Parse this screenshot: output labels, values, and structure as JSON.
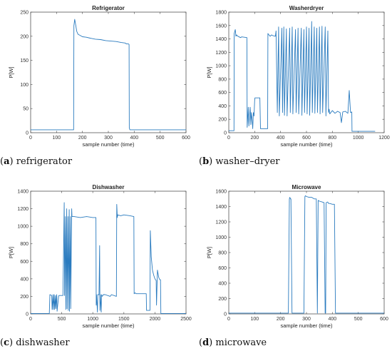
{
  "chart_data": [
    {
      "type": "line",
      "title": "Refrigerator",
      "xlabel": "sample number (time)",
      "ylabel": "P[W]",
      "xlim": [
        0,
        600
      ],
      "ylim": [
        0,
        250
      ],
      "xticks": [
        "0",
        "100",
        "200",
        "300",
        "400",
        "500",
        "600"
      ],
      "yticks": [
        "0",
        "50",
        "100",
        "150",
        "200",
        "250"
      ],
      "caption_letter": "a",
      "caption_text": "refrigerator",
      "color": "#2a7bbf",
      "series": [
        {
          "x": [
            0,
            100,
            166,
            167,
            170,
            173,
            178,
            183,
            190,
            200,
            215,
            230,
            250,
            270,
            290,
            310,
            330,
            350,
            365,
            370,
            378,
            380,
            381,
            383,
            400,
            450,
            500,
            550,
            600
          ],
          "y": [
            6,
            6,
            6,
            222,
            235,
            226,
            210,
            204,
            202,
            199,
            198,
            196,
            194,
            193,
            191,
            190,
            189,
            187,
            186,
            184,
            184,
            183,
            10,
            6,
            6,
            6,
            6,
            6,
            6
          ]
        }
      ]
    },
    {
      "type": "line",
      "title": "Washerdryer",
      "xlabel": "sample number (time)",
      "ylabel": "P[W]",
      "xlim": [
        0,
        1200
      ],
      "ylim": [
        0,
        1800
      ],
      "xticks": [
        "0",
        "200",
        "400",
        "600",
        "800",
        "1000",
        "1200"
      ],
      "yticks": [
        "0",
        "200",
        "400",
        "600",
        "800",
        "1000",
        "1200",
        "1400",
        "1600",
        "1800"
      ],
      "caption_letter": "b",
      "caption_text": "washer–dryer",
      "color": "#2a7bbf",
      "series": [
        {
          "x": [
            0,
            40,
            42,
            50,
            55,
            60,
            70,
            80,
            90,
            100,
            140,
            142,
            148,
            150,
            155,
            160,
            165,
            170,
            175,
            180,
            185,
            190,
            195,
            200,
            202,
            240,
            245,
            280,
            282,
            300,
            302,
            310,
            320,
            330,
            340,
            360,
            365,
            375,
            385,
            390,
            410,
            415,
            425,
            430,
            445,
            450,
            470,
            475,
            490,
            495,
            515,
            520,
            535,
            540,
            560,
            565,
            580,
            585,
            600,
            605,
            620,
            625,
            640,
            645,
            660,
            665,
            680,
            685,
            700,
            705,
            720,
            725,
            745,
            750,
            765,
            770,
            775,
            780,
            800,
            820,
            840,
            860,
            870,
            880,
            900,
            920,
            930,
            940,
            950,
            952,
            960,
            1000,
            1100,
            1130
          ],
          "y": [
            30,
            30,
            1480,
            1540,
            1440,
            1460,
            1440,
            1430,
            1420,
            1430,
            1420,
            80,
            300,
            380,
            100,
            250,
            380,
            120,
            300,
            200,
            60,
            300,
            250,
            480,
            520,
            520,
            60,
            60,
            60,
            60,
            1480,
            1460,
            1440,
            1460,
            1450,
            1440,
            1520,
            300,
            1580,
            250,
            1560,
            300,
            1580,
            260,
            1550,
            250,
            1560,
            300,
            1580,
            280,
            1540,
            300,
            1560,
            280,
            1560,
            260,
            1540,
            300,
            1580,
            280,
            1560,
            260,
            1660,
            300,
            1580,
            290,
            1560,
            300,
            1580,
            280,
            1590,
            300,
            1580,
            250,
            1520,
            300,
            350,
            280,
            330,
            290,
            320,
            300,
            150,
            310,
            320,
            290,
            630,
            300,
            310,
            20,
            20,
            20,
            20,
            20
          ]
        }
      ]
    },
    {
      "type": "line",
      "title": "Dishwasher",
      "xlabel": "sample number (time)",
      "ylabel": "P[W]",
      "xlim": [
        0,
        2500
      ],
      "ylim": [
        0,
        1400
      ],
      "xticks": [
        "0",
        "500",
        "1000",
        "1500",
        "2000",
        "2500"
      ],
      "yticks": [
        "0",
        "200",
        "400",
        "600",
        "800",
        "1000",
        "1200",
        "1400"
      ],
      "caption_letter": "c",
      "caption_text": "dishwasher",
      "color": "#2a7bbf",
      "series": [
        {
          "x": [
            0,
            300,
            310,
            340,
            345,
            360,
            365,
            380,
            385,
            400,
            405,
            420,
            425,
            450,
            455,
            520,
            540,
            545,
            560,
            565,
            580,
            585,
            600,
            605,
            620,
            625,
            640,
            645,
            660,
            665,
            700,
            800,
            900,
            1000,
            1050,
            1055,
            1060,
            1075,
            1080,
            1100,
            1110,
            1115,
            1120,
            1135,
            1140,
            1150,
            1160,
            1170,
            1200,
            1280,
            1300,
            1380,
            1385,
            1395,
            1400,
            1450,
            1500,
            1600,
            1660,
            1665,
            1680,
            1700,
            1860,
            1865,
            1880,
            1900,
            1920,
            1925,
            1940,
            1960,
            1980,
            2000,
            2020,
            2025,
            2040,
            2060,
            2070,
            2080,
            2090,
            2095,
            2100,
            2500
          ],
          "y": [
            5,
            5,
            220,
            210,
            50,
            220,
            50,
            220,
            50,
            210,
            60,
            220,
            30,
            200,
            210,
            210,
            1270,
            210,
            1110,
            50,
            1200,
            60,
            1110,
            40,
            1190,
            30,
            1110,
            60,
            1200,
            1110,
            1110,
            1100,
            1110,
            1100,
            1100,
            100,
            220,
            20,
            220,
            220,
            780,
            40,
            220,
            20,
            220,
            200,
            210,
            220,
            220,
            200,
            220,
            200,
            1250,
            1100,
            1130,
            1120,
            1130,
            1120,
            1110,
            230,
            240,
            230,
            230,
            40,
            40,
            40,
            40,
            950,
            650,
            500,
            440,
            400,
            380,
            100,
            500,
            420,
            400,
            390,
            390,
            5,
            5,
            5
          ]
        }
      ]
    },
    {
      "type": "line",
      "title": "Microwave",
      "xlabel": "sample number (time)",
      "ylabel": "P[W]",
      "xlim": [
        0,
        600
      ],
      "ylim": [
        0,
        1600
      ],
      "xticks": [
        "0",
        "100",
        "200",
        "300",
        "400",
        "500",
        "600"
      ],
      "yticks": [
        "0",
        "200",
        "400",
        "600",
        "800",
        "1000",
        "1200",
        "1400",
        "1600"
      ],
      "caption_letter": "d",
      "caption_text": "microwave",
      "color": "#2a7bbf",
      "series": [
        {
          "x": [
            0,
            230,
            234,
            236,
            238,
            240,
            244,
            290,
            294,
            296,
            300,
            310,
            320,
            330,
            338,
            342,
            345,
            350,
            360,
            368,
            372,
            374,
            376,
            382,
            385,
            390,
            400,
            408,
            412,
            600
          ],
          "y": [
            10,
            10,
            1500,
            1520,
            1500,
            1500,
            10,
            10,
            1530,
            1540,
            1530,
            1520,
            1520,
            1500,
            1500,
            10,
            1480,
            1470,
            1460,
            1450,
            10,
            10,
            1450,
            1460,
            1440,
            1440,
            1430,
            1430,
            10,
            10
          ]
        }
      ]
    }
  ]
}
